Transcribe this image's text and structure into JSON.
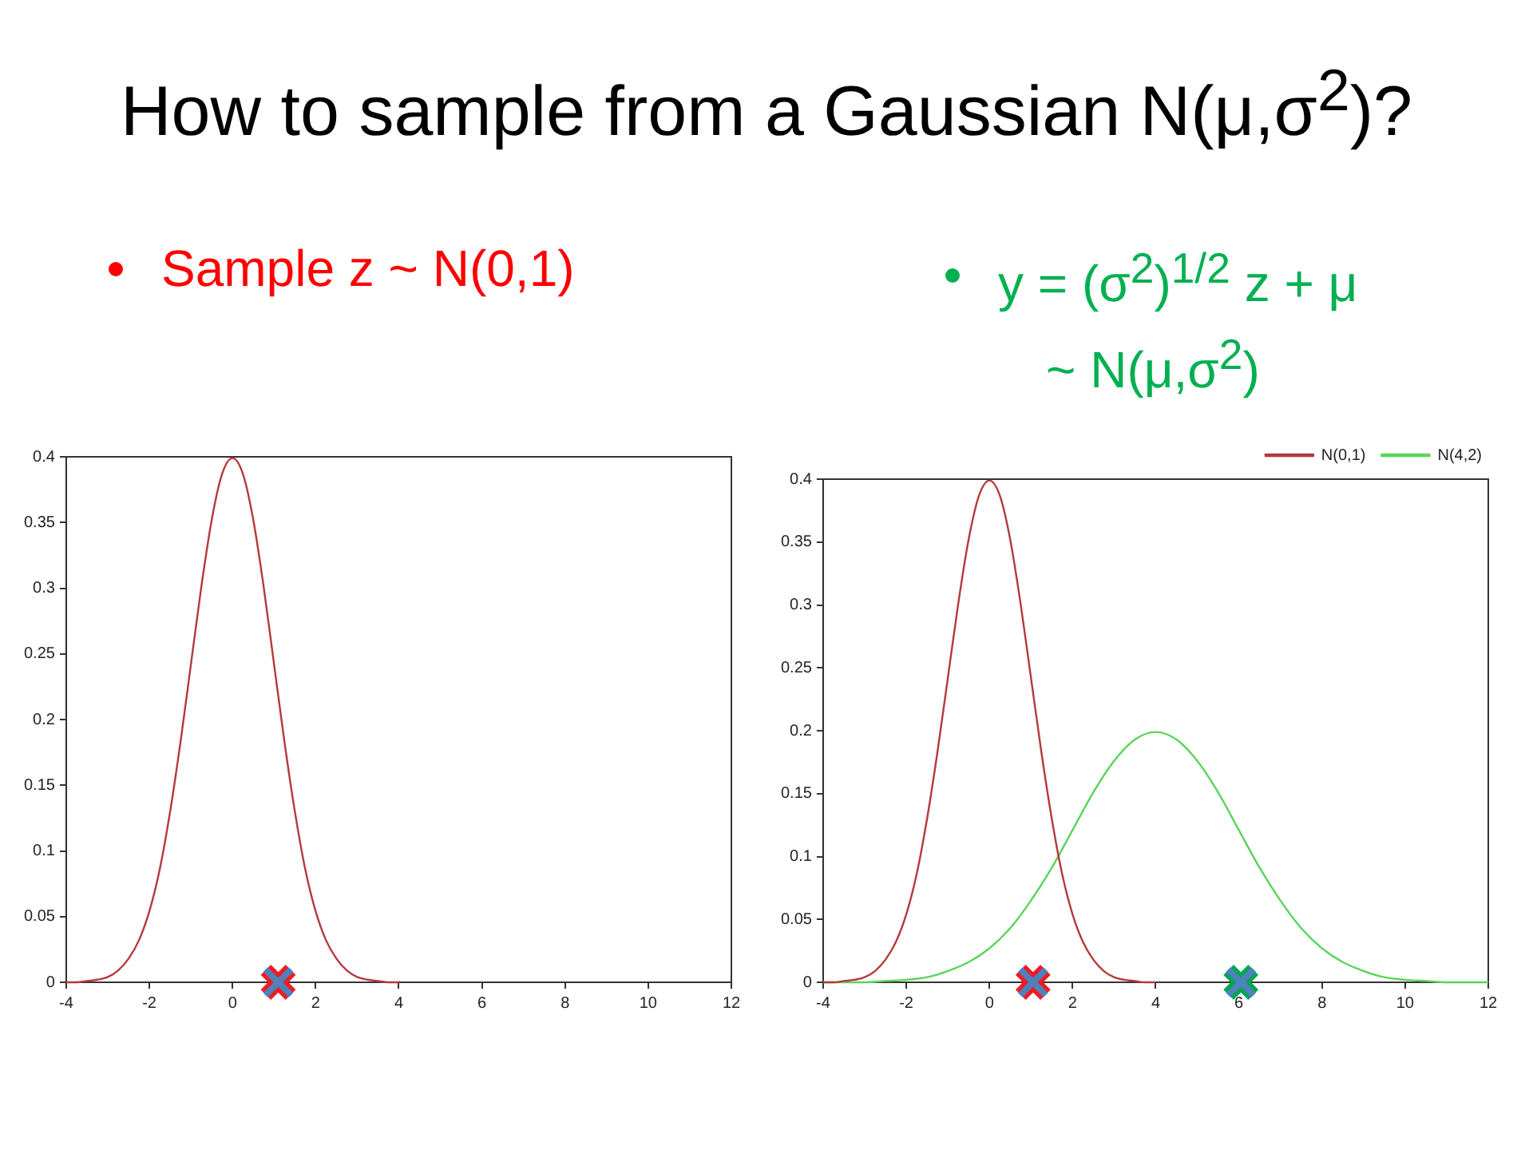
{
  "chart_data": [
    {
      "type": "line",
      "title": "How to sample from a Gaussian N(μ,σ$^{2}$)?",
      "subtitle": "Sample z ~ N(0,1)",
      "xlim": [
        -4,
        12
      ],
      "xticks": [
        -4,
        -2,
        0,
        2,
        4,
        6,
        8,
        10,
        12
      ],
      "ylim": [
        0,
        0.4
      ],
      "yticks": [
        0,
        0.05,
        0.1,
        0.15,
        0.2,
        0.25,
        0.3,
        0.35,
        0.4
      ],
      "legend": false,
      "marker": "none",
      "series": [
        {
          "color": "#b5393b",
          "x": [
            -4,
            -3.75,
            -3.5,
            -3.25,
            -3,
            -2.75,
            -2.5,
            -2.25,
            -2,
            -1.75,
            -1.5,
            -1.25,
            -1,
            -0.75,
            -0.5,
            -0.25,
            0,
            0.25,
            0.5,
            0.75,
            1,
            1.25,
            1.5,
            1.75,
            2,
            2.25,
            2.5,
            2.75,
            3,
            3.25,
            3.5,
            3.75,
            4
          ],
          "values": [
            0,
            0,
            0.001,
            0.002,
            0.004,
            0.009,
            0.018,
            0.032,
            0.054,
            0.086,
            0.13,
            0.183,
            0.242,
            0.301,
            0.352,
            0.387,
            0.399,
            0.387,
            0.352,
            0.301,
            0.242,
            0.183,
            0.13,
            0.086,
            0.054,
            0.032,
            0.018,
            0.009,
            0.004,
            0.002,
            0.001,
            0,
            0
          ]
        },
        {
          "type": "scatter",
          "marker": "cross",
          "color": "#ee1c24",
          "x": [
            1.1
          ],
          "values": [
            0
          ]
        }
      ]
    },
    {
      "type": "line",
      "subtitle": "y = (σ$^{2}$)$^{1/2}$ z + μ",
      "annotations": [
        "~ N(μ,σ$^{2}$)"
      ],
      "xlim": [
        -4,
        12
      ],
      "xticks": [
        -4,
        -2,
        0,
        2,
        4,
        6,
        8,
        10,
        12
      ],
      "ylim": [
        0,
        0.4
      ],
      "yticks": [
        0,
        0.05,
        0.1,
        0.15,
        0.2,
        0.25,
        0.3,
        0.35,
        0.4
      ],
      "legend": "top right",
      "marker": "none",
      "series": [
        {
          "name": "N(0,1)",
          "color": "#b5393b",
          "x": [
            -4,
            -3.75,
            -3.5,
            -3.25,
            -3,
            -2.75,
            -2.5,
            -2.25,
            -2,
            -1.75,
            -1.5,
            -1.25,
            -1,
            -0.75,
            -0.5,
            -0.25,
            0,
            0.25,
            0.5,
            0.75,
            1,
            1.25,
            1.5,
            1.75,
            2,
            2.25,
            2.5,
            2.75,
            3,
            3.25,
            3.5,
            3.75,
            4
          ],
          "values": [
            0,
            0,
            0.001,
            0.002,
            0.004,
            0.009,
            0.018,
            0.032,
            0.054,
            0.086,
            0.13,
            0.183,
            0.242,
            0.301,
            0.352,
            0.387,
            0.399,
            0.387,
            0.352,
            0.301,
            0.242,
            0.183,
            0.13,
            0.086,
            0.054,
            0.032,
            0.018,
            0.009,
            0.004,
            0.002,
            0.001,
            0,
            0
          ]
        },
        {
          "name": "N(4,2)",
          "color": "#5ad45a",
          "x": [
            -4,
            -3.5,
            -3,
            -2.5,
            -2,
            -1.5,
            -1,
            -0.5,
            0,
            0.5,
            1,
            1.5,
            2,
            2.5,
            3,
            3.5,
            4,
            4.5,
            5,
            5.5,
            6,
            6.5,
            7,
            7.5,
            8,
            8.5,
            9,
            9.5,
            10,
            10.5,
            11,
            11.5,
            12
          ],
          "values": [
            0,
            0,
            0,
            0.001,
            0.002,
            0.004,
            0.009,
            0.016,
            0.027,
            0.043,
            0.065,
            0.091,
            0.121,
            0.151,
            0.176,
            0.193,
            0.199,
            0.193,
            0.176,
            0.151,
            0.121,
            0.091,
            0.065,
            0.043,
            0.027,
            0.016,
            0.009,
            0.004,
            0.002,
            0.001,
            0,
            0,
            0
          ]
        },
        {
          "type": "scatter",
          "marker": "cross",
          "color": "#ee1c24",
          "x": [
            1.05
          ],
          "values": [
            0
          ]
        },
        {
          "type": "scatter",
          "marker": "cross",
          "color": "#00a651",
          "x": [
            6.05
          ],
          "values": [
            0
          ]
        }
      ]
    }
  ]
}
